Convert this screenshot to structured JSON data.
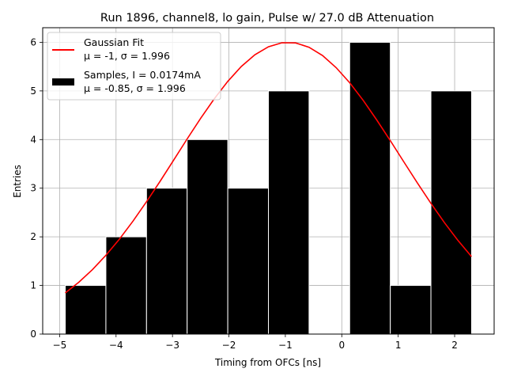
{
  "chart_data": {
    "type": "bar",
    "title": "Run 1896, channel8, lo gain, Pulse w/ 27.0 dB Attenuation",
    "xlabel": "Timing from OFCs [ns]",
    "ylabel": "Entries",
    "xlim": [
      -5.3,
      2.7
    ],
    "ylim": [
      0,
      6.3
    ],
    "xticks": [
      -5,
      -4,
      -3,
      -2,
      -1,
      0,
      1,
      2
    ],
    "xtick_labels": [
      "−5",
      "−4",
      "−3",
      "−2",
      "−1",
      "0",
      "1",
      "2"
    ],
    "yticks": [
      0,
      1,
      2,
      3,
      4,
      5,
      6
    ],
    "ytick_labels": [
      "0",
      "1",
      "2",
      "3",
      "4",
      "5",
      "6"
    ],
    "grid": true,
    "legend_position": "top-left",
    "histogram": {
      "name": "Samples, I = 0.0174mA",
      "stats": "μ = -0.85, σ = 1.996",
      "color": "#000000",
      "edgecolor": "#ffffff",
      "bin_edges": [
        -4.9,
        -4.18,
        -3.46,
        -2.74,
        -2.02,
        -1.3,
        -0.58,
        0.14,
        0.86,
        1.58,
        2.3
      ],
      "counts": [
        1,
        2,
        3,
        4,
        3,
        5,
        0,
        6,
        1,
        5
      ]
    },
    "fit": {
      "name": "Gaussian Fit",
      "stats": "μ = -1, σ = 1.996",
      "color": "#ff0000",
      "amplitude": 6.0,
      "mean": -0.95,
      "sigma": 1.996,
      "x_range": [
        -4.9,
        2.3
      ]
    }
  }
}
